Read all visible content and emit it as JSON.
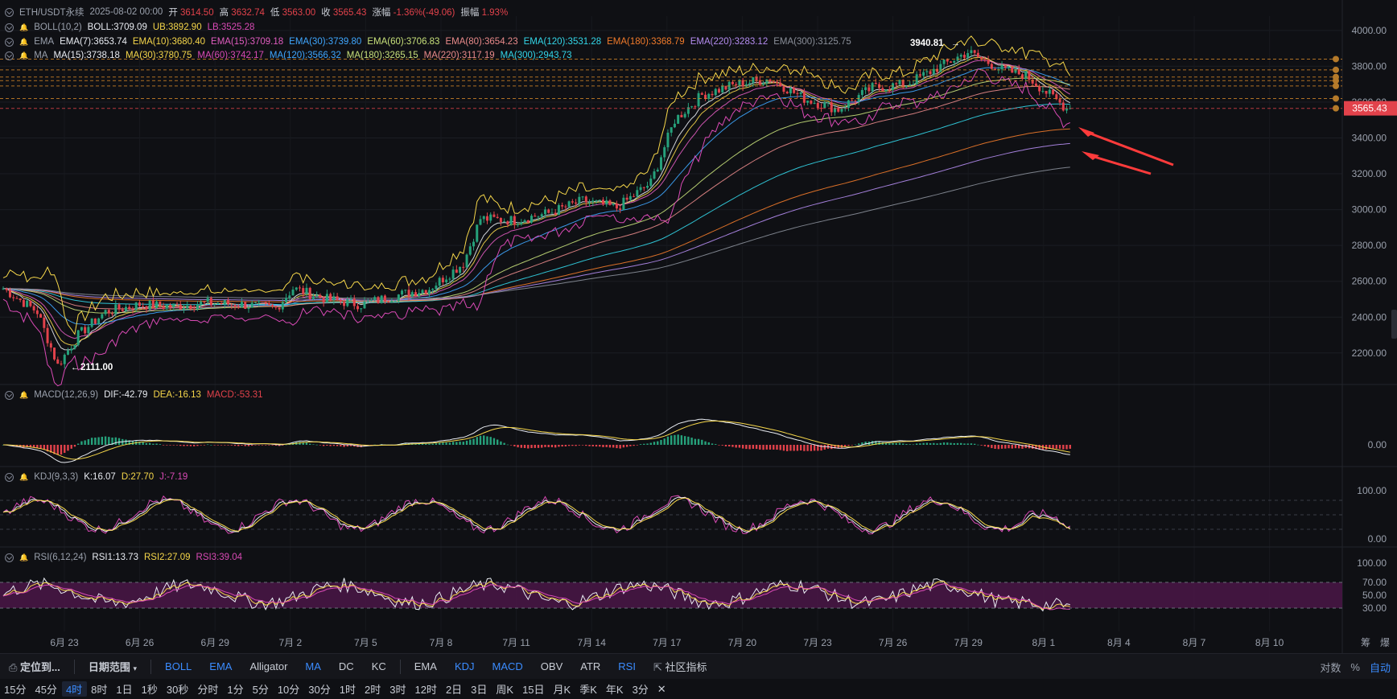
{
  "header": {
    "symbol": "ETH/USDT永续",
    "date": "2025-08-02 00:00",
    "open_label": "开",
    "open": "3614.50",
    "high_label": "高",
    "high": "3632.74",
    "low_label": "低",
    "low": "3563.00",
    "close_label": "收",
    "close": "3565.43",
    "change_label": "涨幅",
    "change": "-1.36%(-49.06)",
    "amp_label": "振幅",
    "amp": "1.93%"
  },
  "indicators": {
    "boll": {
      "name": "BOLL(10,2)",
      "items": [
        "BOLL:3709.09",
        "UB:3892.90",
        "LB:3525.28"
      ],
      "colors": [
        "#e9ecf2",
        "#f5d64a",
        "#d94ab5"
      ]
    },
    "ema": {
      "name": "EMA",
      "items": [
        "EMA(7):3653.74",
        "EMA(10):3680.40",
        "EMA(15):3709.18",
        "EMA(30):3739.80",
        "EMA(60):3706.83",
        "EMA(80):3654.23",
        "EMA(120):3531.28",
        "EMA(180):3368.79",
        "EMA(220):3283.12",
        "EMA(300):3125.75"
      ],
      "colors": [
        "#e9ecf2",
        "#f5d64a",
        "#e05cbf",
        "#3fa7ff",
        "#c7e07a",
        "#e98a8a",
        "#33d6e8",
        "#f07a2a",
        "#b48cf0",
        "#8a8f99"
      ]
    },
    "ma": {
      "name": "MA",
      "items": [
        "MA(15):3738.18",
        "MA(30):3780.75",
        "MA(60):3742.17",
        "MA(120):3566.32",
        "MA(180):3265.15",
        "MA(220):3117.19",
        "MA(300):2943.73"
      ],
      "colors": [
        "#e9ecf2",
        "#f5d64a",
        "#d94ab5",
        "#3fa7ff",
        "#c7e07a",
        "#e98a8a",
        "#33d6e8"
      ]
    },
    "macd": {
      "name": "MACD(12,26,9)",
      "items": [
        "DIF:-42.79",
        "DEA:-16.13",
        "MACD:-53.31"
      ],
      "colors": [
        "#e9ecf2",
        "#f5d64a",
        "#e2424b"
      ]
    },
    "kdj": {
      "name": "KDJ(9,3,3)",
      "items": [
        "K:16.07",
        "D:27.70",
        "J:-7.19"
      ],
      "colors": [
        "#e9ecf2",
        "#f5d64a",
        "#d94ab5"
      ]
    },
    "rsi": {
      "name": "RSI(6,12,24)",
      "items": [
        "RSI1:13.73",
        "RSI2:27.09",
        "RSI3:39.04"
      ],
      "colors": [
        "#e9ecf2",
        "#f5d64a",
        "#d94ab5"
      ]
    }
  },
  "chart_data": {
    "type": "candlestick",
    "current_price": "3565.43",
    "price_axis": {
      "ticks": [
        "4000.00",
        "3800.00",
        "3600.00",
        "3400.00",
        "3200.00",
        "3000.00",
        "2800.00",
        "2600.00",
        "2400.00",
        "2200.00"
      ],
      "ylim": [
        2060,
        4080
      ]
    },
    "annotations": {
      "high": "3940.81",
      "low": "2111.00"
    },
    "x_ticks": [
      "6月 23",
      "6月 26",
      "6月 29",
      "7月 2",
      "7月 5",
      "7月 8",
      "7月 11",
      "7月 14",
      "7月 17",
      "7月 20",
      "7月 23",
      "7月 26",
      "7月 29",
      "8月 1",
      "8月 4",
      "8月 7",
      "8月 10"
    ],
    "x_right_labels": [
      "筹",
      "爆"
    ],
    "price_path": [
      [
        0,
        2560
      ],
      [
        10,
        2430
      ],
      [
        16,
        2130
      ],
      [
        22,
        2300
      ],
      [
        30,
        2430
      ],
      [
        40,
        2470
      ],
      [
        50,
        2460
      ],
      [
        60,
        2480
      ],
      [
        70,
        2470
      ],
      [
        80,
        2450
      ],
      [
        85,
        2560
      ],
      [
        95,
        2500
      ],
      [
        105,
        2470
      ],
      [
        115,
        2520
      ],
      [
        125,
        2560
      ],
      [
        135,
        2700
      ],
      [
        140,
        2950
      ],
      [
        150,
        2940
      ],
      [
        160,
        2980
      ],
      [
        170,
        3050
      ],
      [
        180,
        3010
      ],
      [
        190,
        3150
      ],
      [
        197,
        3500
      ],
      [
        205,
        3640
      ],
      [
        215,
        3700
      ],
      [
        225,
        3730
      ],
      [
        235,
        3620
      ],
      [
        245,
        3560
      ],
      [
        255,
        3680
      ],
      [
        265,
        3700
      ],
      [
        275,
        3800
      ],
      [
        283,
        3880
      ],
      [
        293,
        3780
      ],
      [
        300,
        3750
      ],
      [
        307,
        3640
      ],
      [
        312,
        3565
      ]
    ],
    "ma_lines_end": [
      3892.9,
      3709.09,
      3525.28,
      3531.28,
      3368.79,
      3283.12,
      3125.75,
      2943.73
    ],
    "macd_ticks": [
      "0.00"
    ],
    "kdj_ticks": [
      "100.00",
      "0.00"
    ],
    "rsi_ticks": [
      "100.00",
      "70.00",
      "50.00",
      "30.00"
    ]
  },
  "toolbar": {
    "locate": "定位到...",
    "range": "日期范围",
    "main_inds": [
      "BOLL",
      "EMA",
      "Alligator",
      "MA",
      "DC",
      "KC"
    ],
    "main_active": [
      true,
      true,
      false,
      true,
      false,
      false
    ],
    "sub_inds": [
      "EMA",
      "KDJ",
      "MACD",
      "OBV",
      "ATR",
      "RSI"
    ],
    "sub_active": [
      false,
      true,
      true,
      false,
      false,
      true
    ],
    "community": "社区指标",
    "log": "对数",
    "percent": "%",
    "auto": "自动"
  },
  "intervals": {
    "items": [
      "15分",
      "45分",
      "4时",
      "8时",
      "1日",
      "1秒",
      "30秒",
      "分时",
      "1分",
      "5分",
      "10分",
      "30分",
      "1时",
      "2时",
      "3时",
      "12时",
      "2日",
      "3日",
      "周K",
      "15日",
      "月K",
      "季K",
      "年K",
      "3分"
    ],
    "active": "4时"
  },
  "colors": {
    "up": "#26a17b",
    "down": "#e2424b",
    "bg": "#0f1014",
    "rsi_band": "#4a1646"
  }
}
